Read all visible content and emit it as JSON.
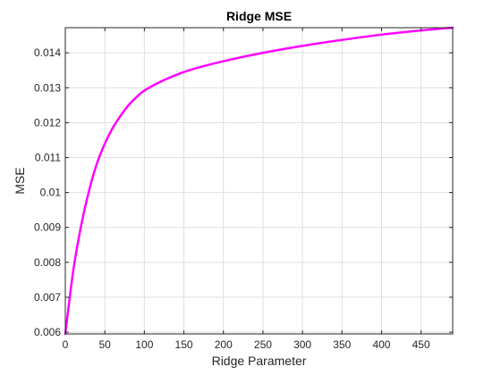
{
  "chart_data": {
    "type": "line",
    "title": "Ridge  MSE",
    "xlabel": "Ridge Parameter",
    "ylabel": "MSE",
    "xlim": [
      0,
      490
    ],
    "ylim": [
      0.00595,
      0.01472
    ],
    "grid": true,
    "xticks": [
      0,
      50,
      100,
      150,
      200,
      250,
      300,
      350,
      400,
      450
    ],
    "xtick_labels": [
      "0",
      "50",
      "100",
      "150",
      "200",
      "250",
      "300",
      "350",
      "400",
      "450"
    ],
    "yticks": [
      0.006,
      0.007,
      0.008,
      0.009,
      0.01,
      0.011,
      0.012,
      0.013,
      0.014
    ],
    "ytick_labels": [
      "0.006",
      "0.007",
      "0.008",
      "0.009",
      "0.01",
      "0.011",
      "0.012",
      "0.013",
      "0.014"
    ],
    "series": [
      {
        "color": "#ff00ff",
        "x": [
          0,
          10,
          20,
          30,
          40,
          50,
          60,
          70,
          80,
          90,
          100,
          125,
          150,
          175,
          200,
          250,
          300,
          350,
          400,
          450,
          490
        ],
        "y": [
          0.00595,
          0.00775,
          0.00905,
          0.01005,
          0.01083,
          0.0114,
          0.01185,
          0.0122,
          0.0125,
          0.01273,
          0.01292,
          0.01322,
          0.01345,
          0.01362,
          0.01376,
          0.014,
          0.0142,
          0.01437,
          0.01452,
          0.01464,
          0.01472
        ]
      }
    ]
  }
}
